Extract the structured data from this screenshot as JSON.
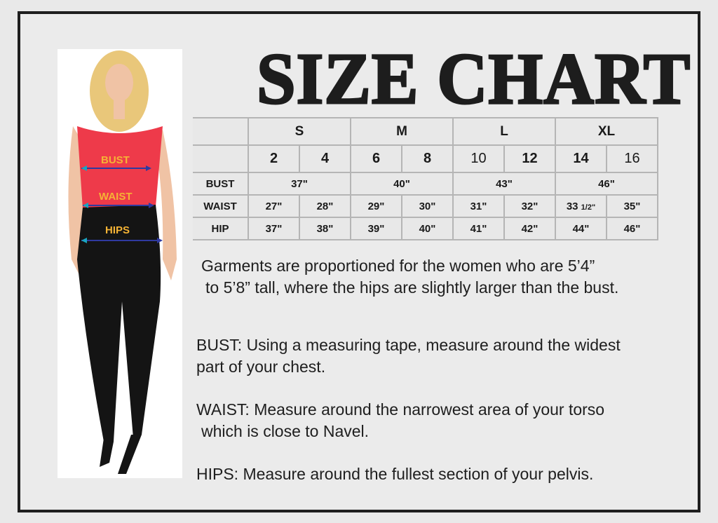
{
  "title": "SIZE CHART",
  "model_labels": [
    "BUST",
    "WAIST",
    "HIPS"
  ],
  "table": {
    "size_groups": [
      "S",
      "M",
      "L",
      "XL"
    ],
    "sizes": [
      "2",
      "4",
      "6",
      "8",
      "10",
      "12",
      "14",
      "16"
    ],
    "bust": {
      "label": "BUST",
      "values": [
        "37\"",
        "40\"",
        "43\"",
        "46\""
      ]
    },
    "waist": {
      "label": "WAIST",
      "values": [
        "27\"",
        "28\"",
        "29\"",
        "30\"",
        "31\"",
        "32\"",
        "33",
        "35\""
      ],
      "fraction": "1/2\""
    },
    "hip": {
      "label": "HIP",
      "values": [
        "37\"",
        "38\"",
        "39\"",
        "40\"",
        "41\"",
        "42\"",
        "44\"",
        "46\""
      ]
    }
  },
  "notes": {
    "intro_1": "Garments are proportioned for the women who are 5’4”",
    "intro_2": "to 5’8”  tall, where the hips are slightly larger than the bust.",
    "bust_1": "BUST: Using a measuring tape, measure around  the widest",
    "bust_2": "part of your chest.",
    "waist_1": "WAIST: Measure  around the narrowest  area of your torso",
    "waist_2": "which is close to Navel.",
    "hips": "HIPS: Measure around the fullest section of your pelvis."
  },
  "colors": {
    "top": "#ee3a4a",
    "label": "#f5b335",
    "arrow": "#2f3aa0",
    "frame": "#1e1e1e"
  }
}
